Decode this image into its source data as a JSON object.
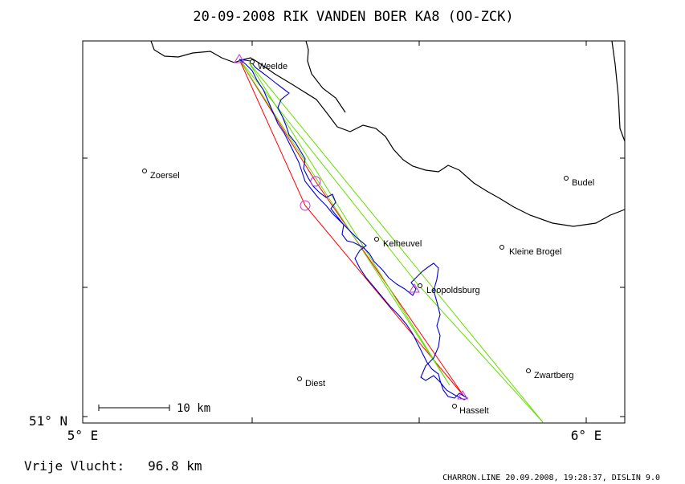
{
  "title": "20-09-2008    RIK VANDEN BOER    KA8 (OO-ZCK)",
  "footer_left": "Vrije Vlucht:   96.8 km",
  "footer_right": "CHARRON.LINE 20.09.2008, 19:28:37, DISLIN 9.0",
  "axes": {
    "lat_label": "51° N",
    "lon_label_left": "5° E",
    "lon_label_right": "6° E"
  },
  "scale_bar": {
    "label": "10 km"
  },
  "places": [
    {
      "name": "Weelde",
      "key": "weelde"
    },
    {
      "name": "Zoersel",
      "key": "zoersel"
    },
    {
      "name": "Budel",
      "key": "budel"
    },
    {
      "name": "Kelheuvel",
      "key": "kelheuvel"
    },
    {
      "name": "Kleine Brogel",
      "key": "kleine-brogel"
    },
    {
      "name": "Leopoldsburg",
      "key": "leopoldsburg"
    },
    {
      "name": "Diest",
      "key": "diest"
    },
    {
      "name": "Zwartberg",
      "key": "zwartberg"
    },
    {
      "name": "Hasselt",
      "key": "hasselt"
    }
  ],
  "colors": {
    "background": "#ffffff",
    "frame": "#000000",
    "border_line": "#000000",
    "flight_track": "#0000cc",
    "task_red": "#ff0000",
    "task_green": "#66dd00",
    "turnpoint": "#cc33cc"
  }
}
